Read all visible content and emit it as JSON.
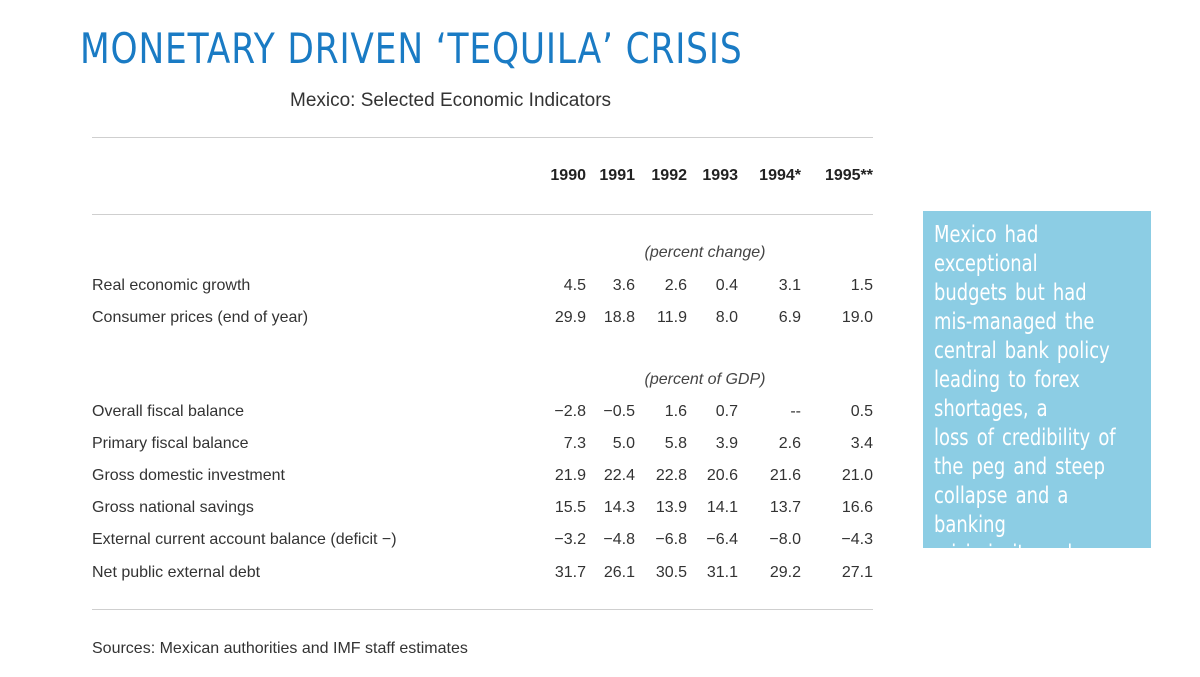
{
  "slide_title": "MONETARY DRIVEN ‘TEQUILA’ CRISIS",
  "table": {
    "title": "Mexico: Selected Economic Indicators",
    "years": [
      "1990",
      "1991",
      "1992",
      "1993",
      "1994*",
      "1995**"
    ],
    "sections": [
      {
        "heading": "(percent change)",
        "rows": [
          {
            "label": "Real economic growth",
            "values": [
              "4.5",
              "3.6",
              "2.6",
              "0.4",
              "3.1",
              "1.5"
            ]
          },
          {
            "label": "Consumer prices (end of year)",
            "values": [
              "29.9",
              "18.8",
              "11.9",
              "8.0",
              "6.9",
              "19.0"
            ]
          }
        ]
      },
      {
        "heading": "(percent of GDP)",
        "rows": [
          {
            "label": "Overall fiscal balance",
            "values": [
              "−2.8",
              "−0.5",
              "1.6",
              "0.7",
              "--",
              "0.5"
            ]
          },
          {
            "label": "Primary fiscal balance",
            "values": [
              "7.3",
              "5.0",
              "5.8",
              "3.9",
              "2.6",
              "3.4"
            ]
          },
          {
            "label": "Gross domestic investment",
            "values": [
              "21.9",
              "22.4",
              "22.8",
              "20.6",
              "21.6",
              "21.0"
            ]
          },
          {
            "label": "Gross national savings",
            "values": [
              "15.5",
              "14.3",
              "13.9",
              "14.1",
              "13.7",
              "16.6"
            ]
          },
          {
            "label": "External current account balance (deficit −)",
            "values": [
              "−3.2",
              "−4.8",
              "−6.8",
              "−6.4",
              "−8.0",
              "−4.3"
            ]
          },
          {
            "label": "Net public external debt",
            "values": [
              "31.7",
              "26.1",
              "30.5",
              "31.1",
              "29.2",
              "27.1"
            ]
          }
        ]
      }
    ],
    "sources": "Sources: Mexican authorities and IMF staff estimates"
  },
  "callout": {
    "lines": [
      "Mexico had exceptional",
      "budgets but had",
      "mis-managed the",
      "central bank policy",
      "leading to forex",
      "shortages, a",
      "loss of credibility of",
      "the peg and steep",
      "collapse and a banking",
      "crisis in its wake"
    ]
  },
  "colors": {
    "title": "#1a7bc4",
    "callout_bg": "#8ccde4",
    "callout_text": "#ffffff"
  }
}
